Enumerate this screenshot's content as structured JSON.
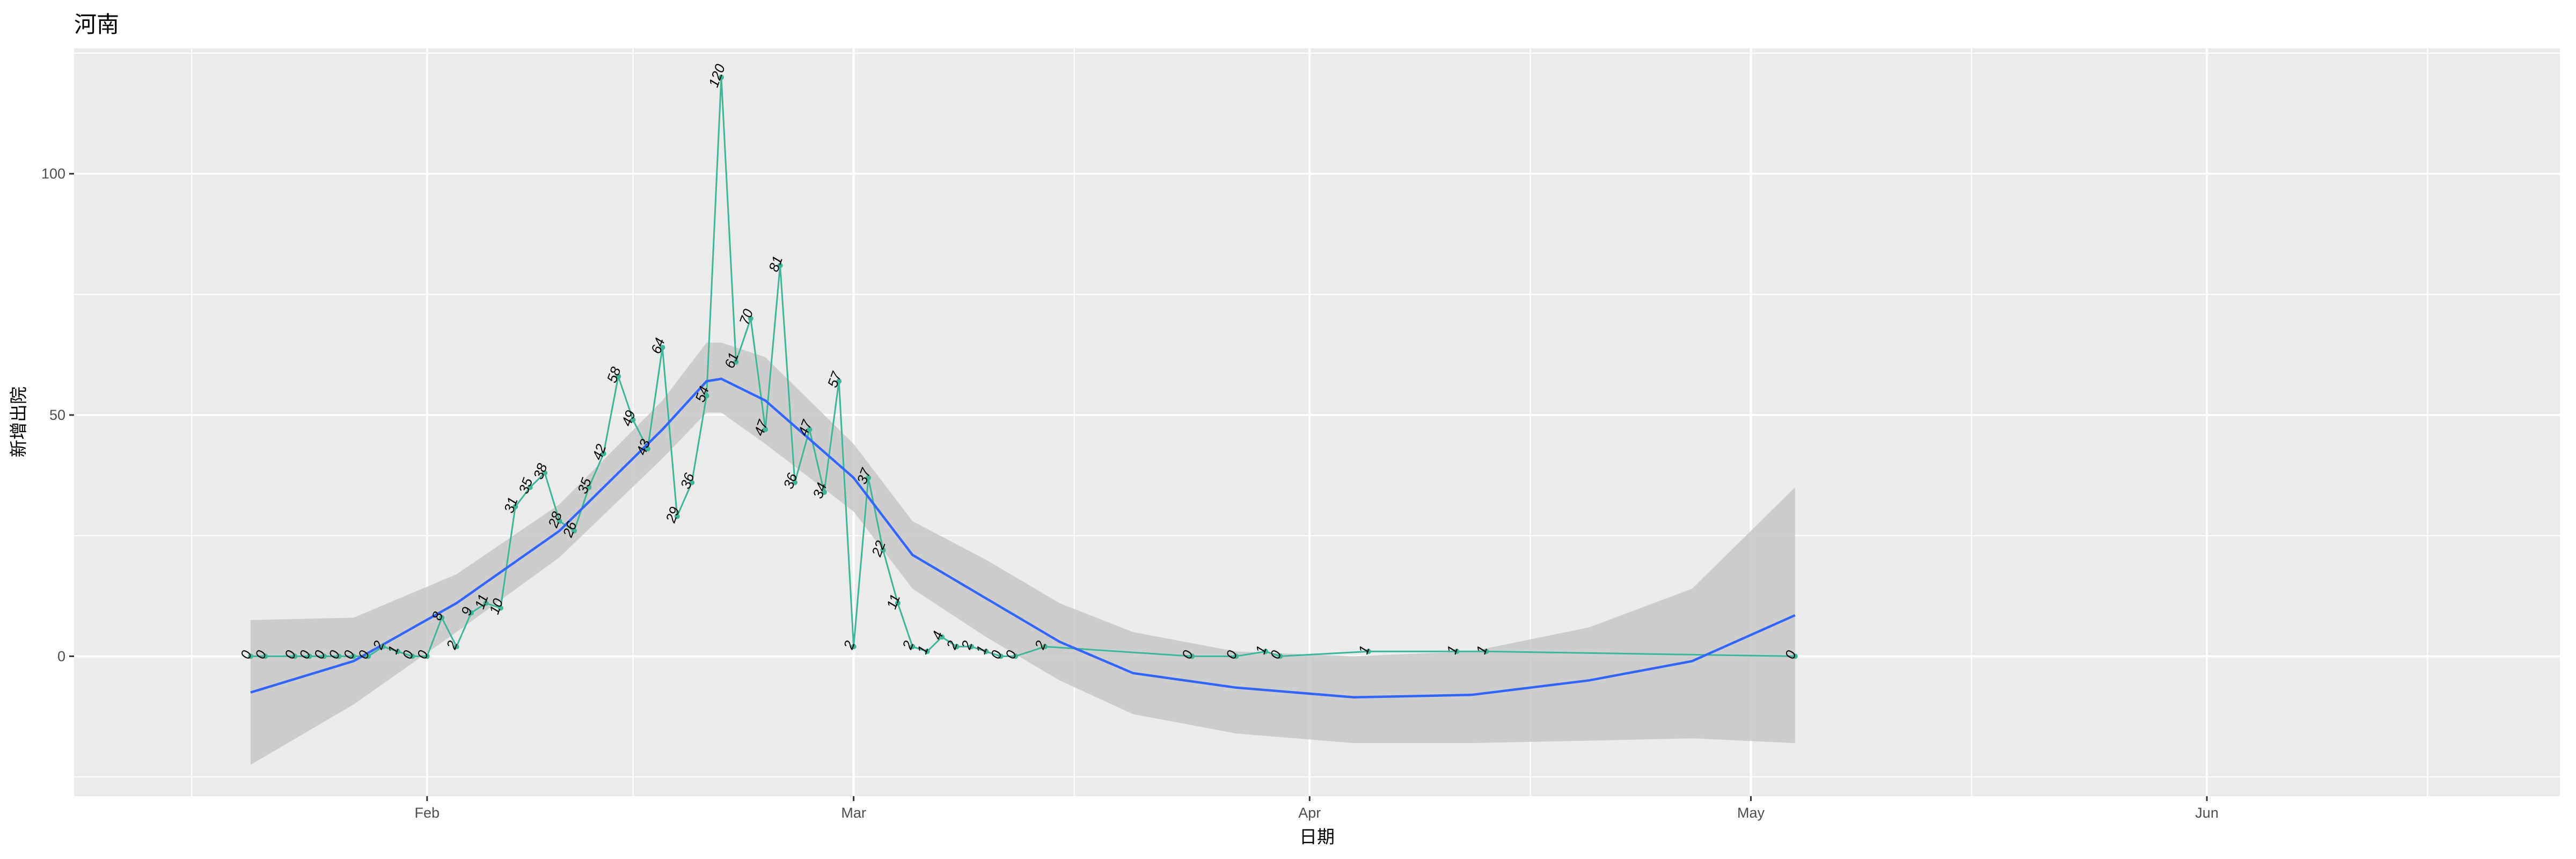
{
  "chart_data": {
    "type": "line",
    "title": "河南",
    "xlabel": "日期",
    "ylabel": "新增出院",
    "ylim": [
      -29,
      126
    ],
    "xlim": [
      "2020-01-08",
      "2020-06-25"
    ],
    "x_ticks": [
      {
        "date": "2020-02-01",
        "label": "Feb"
      },
      {
        "date": "2020-03-01",
        "label": "Mar"
      },
      {
        "date": "2020-04-01",
        "label": "Apr"
      },
      {
        "date": "2020-05-01",
        "label": "May"
      },
      {
        "date": "2020-06-01",
        "label": "Jun"
      }
    ],
    "x_minor_ticks": [
      "2020-01-16",
      "2020-02-15",
      "2020-03-16",
      "2020-04-16",
      "2020-05-16",
      "2020-06-16"
    ],
    "y_ticks": [
      0,
      50,
      100
    ],
    "y_minor_ticks": [
      -25,
      25,
      75,
      125
    ],
    "grid": true,
    "colors": {
      "panel": "#ebebeb",
      "grid": "#ffffff",
      "series": "#3fb59a",
      "smooth": "#3366ff",
      "band": "#c8c8c8"
    },
    "series": [
      {
        "x": [
          "2020-01-20",
          "2020-01-21",
          "2020-01-23",
          "2020-01-24",
          "2020-01-25",
          "2020-01-26",
          "2020-01-27",
          "2020-01-28",
          "2020-01-29",
          "2020-01-30",
          "2020-01-31",
          "2020-02-01",
          "2020-02-02",
          "2020-02-03",
          "2020-02-04",
          "2020-02-05",
          "2020-02-06",
          "2020-02-07",
          "2020-02-08",
          "2020-02-09",
          "2020-02-10",
          "2020-02-11",
          "2020-02-12",
          "2020-02-13",
          "2020-02-14",
          "2020-02-15",
          "2020-02-16",
          "2020-02-17",
          "2020-02-18",
          "2020-02-19",
          "2020-02-20",
          "2020-02-21",
          "2020-02-22",
          "2020-02-23",
          "2020-02-24",
          "2020-02-25",
          "2020-02-26",
          "2020-02-27",
          "2020-02-28",
          "2020-02-29",
          "2020-03-01",
          "2020-03-02",
          "2020-03-03",
          "2020-03-04",
          "2020-03-05",
          "2020-03-06",
          "2020-03-07",
          "2020-03-08",
          "2020-03-09",
          "2020-03-10",
          "2020-03-11",
          "2020-03-12",
          "2020-03-14",
          "2020-03-24",
          "2020-03-27",
          "2020-03-29",
          "2020-03-30",
          "2020-04-05",
          "2020-04-11",
          "2020-04-13",
          "2020-05-04"
        ],
        "values": [
          0,
          0,
          0,
          0,
          0,
          0,
          0,
          0,
          2,
          1,
          0,
          0,
          8,
          2,
          9,
          11,
          10,
          31,
          35,
          38,
          28,
          26,
          35,
          42,
          58,
          49,
          43,
          64,
          29,
          36,
          54,
          120,
          61,
          70,
          47,
          81,
          36,
          47,
          34,
          57,
          2,
          37,
          22,
          11,
          2,
          1,
          4,
          2,
          2,
          1,
          0,
          0,
          2,
          0,
          0,
          1,
          0,
          1,
          1,
          1,
          0
        ]
      }
    ],
    "smooth": {
      "method": "loess",
      "x": [
        "2020-01-20",
        "2020-01-27",
        "2020-02-03",
        "2020-02-10",
        "2020-02-17",
        "2020-02-20",
        "2020-02-21",
        "2020-02-24",
        "2020-03-01",
        "2020-03-05",
        "2020-03-10",
        "2020-03-15",
        "2020-03-20",
        "2020-03-27",
        "2020-04-04",
        "2020-04-12",
        "2020-04-20",
        "2020-04-27",
        "2020-05-04"
      ],
      "y": [
        -7.5,
        -1,
        11,
        26,
        47,
        57,
        57.5,
        53,
        37,
        21,
        12,
        3,
        -3.5,
        -6.5,
        -8.5,
        -8,
        -5,
        -1,
        8.5
      ],
      "upper": [
        7.5,
        8,
        17,
        31.5,
        53,
        65,
        65,
        62,
        44,
        28,
        20,
        11,
        5,
        1,
        0,
        1,
        6,
        14,
        35
      ],
      "lower": [
        -22.5,
        -10,
        5,
        20.5,
        41,
        50.5,
        50.5,
        44,
        30,
        14,
        4,
        -5,
        -12,
        -16,
        -18,
        -18,
        -17.5,
        -17,
        -18
      ]
    }
  }
}
